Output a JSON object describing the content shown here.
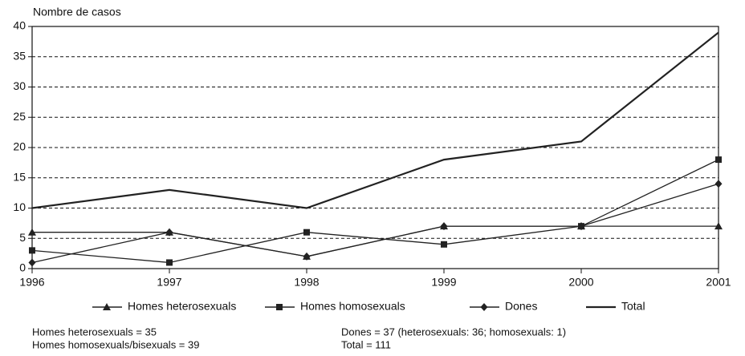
{
  "chart_data": {
    "type": "line",
    "ylabel": "Nombre de casos",
    "x": [
      1996,
      1997,
      1998,
      1999,
      2000,
      2001
    ],
    "xlim": [
      1996,
      2001
    ],
    "xticks": [
      1996,
      1997,
      1998,
      1999,
      2000,
      2001
    ],
    "ylim": [
      0,
      40
    ],
    "yticks": [
      0,
      5,
      10,
      15,
      20,
      25,
      30,
      35,
      40
    ],
    "grid": true,
    "legend": "bottom",
    "series": [
      {
        "name": "Homes heterosexuals",
        "color": "#222",
        "marker": "triangle",
        "values": [
          6,
          6,
          2,
          7,
          7,
          7
        ]
      },
      {
        "name": "Homes homosexuals",
        "color": "#222",
        "marker": "square",
        "values": [
          3,
          1,
          6,
          4,
          7,
          18
        ]
      },
      {
        "name": "Dones",
        "color": "#222",
        "marker": "diamond",
        "values": [
          1,
          6,
          2,
          7,
          7,
          14
        ]
      },
      {
        "name": "Total",
        "color": "#222",
        "marker": "none",
        "values": [
          10,
          13,
          10,
          18,
          21,
          39
        ]
      }
    ],
    "notes": [
      "Homes heterosexuals = 35",
      "Homes homosexuals/bisexuals = 39",
      "Dones = 37 (heterosexuals: 36; homosexuals: 1)",
      "Total = 111"
    ]
  }
}
